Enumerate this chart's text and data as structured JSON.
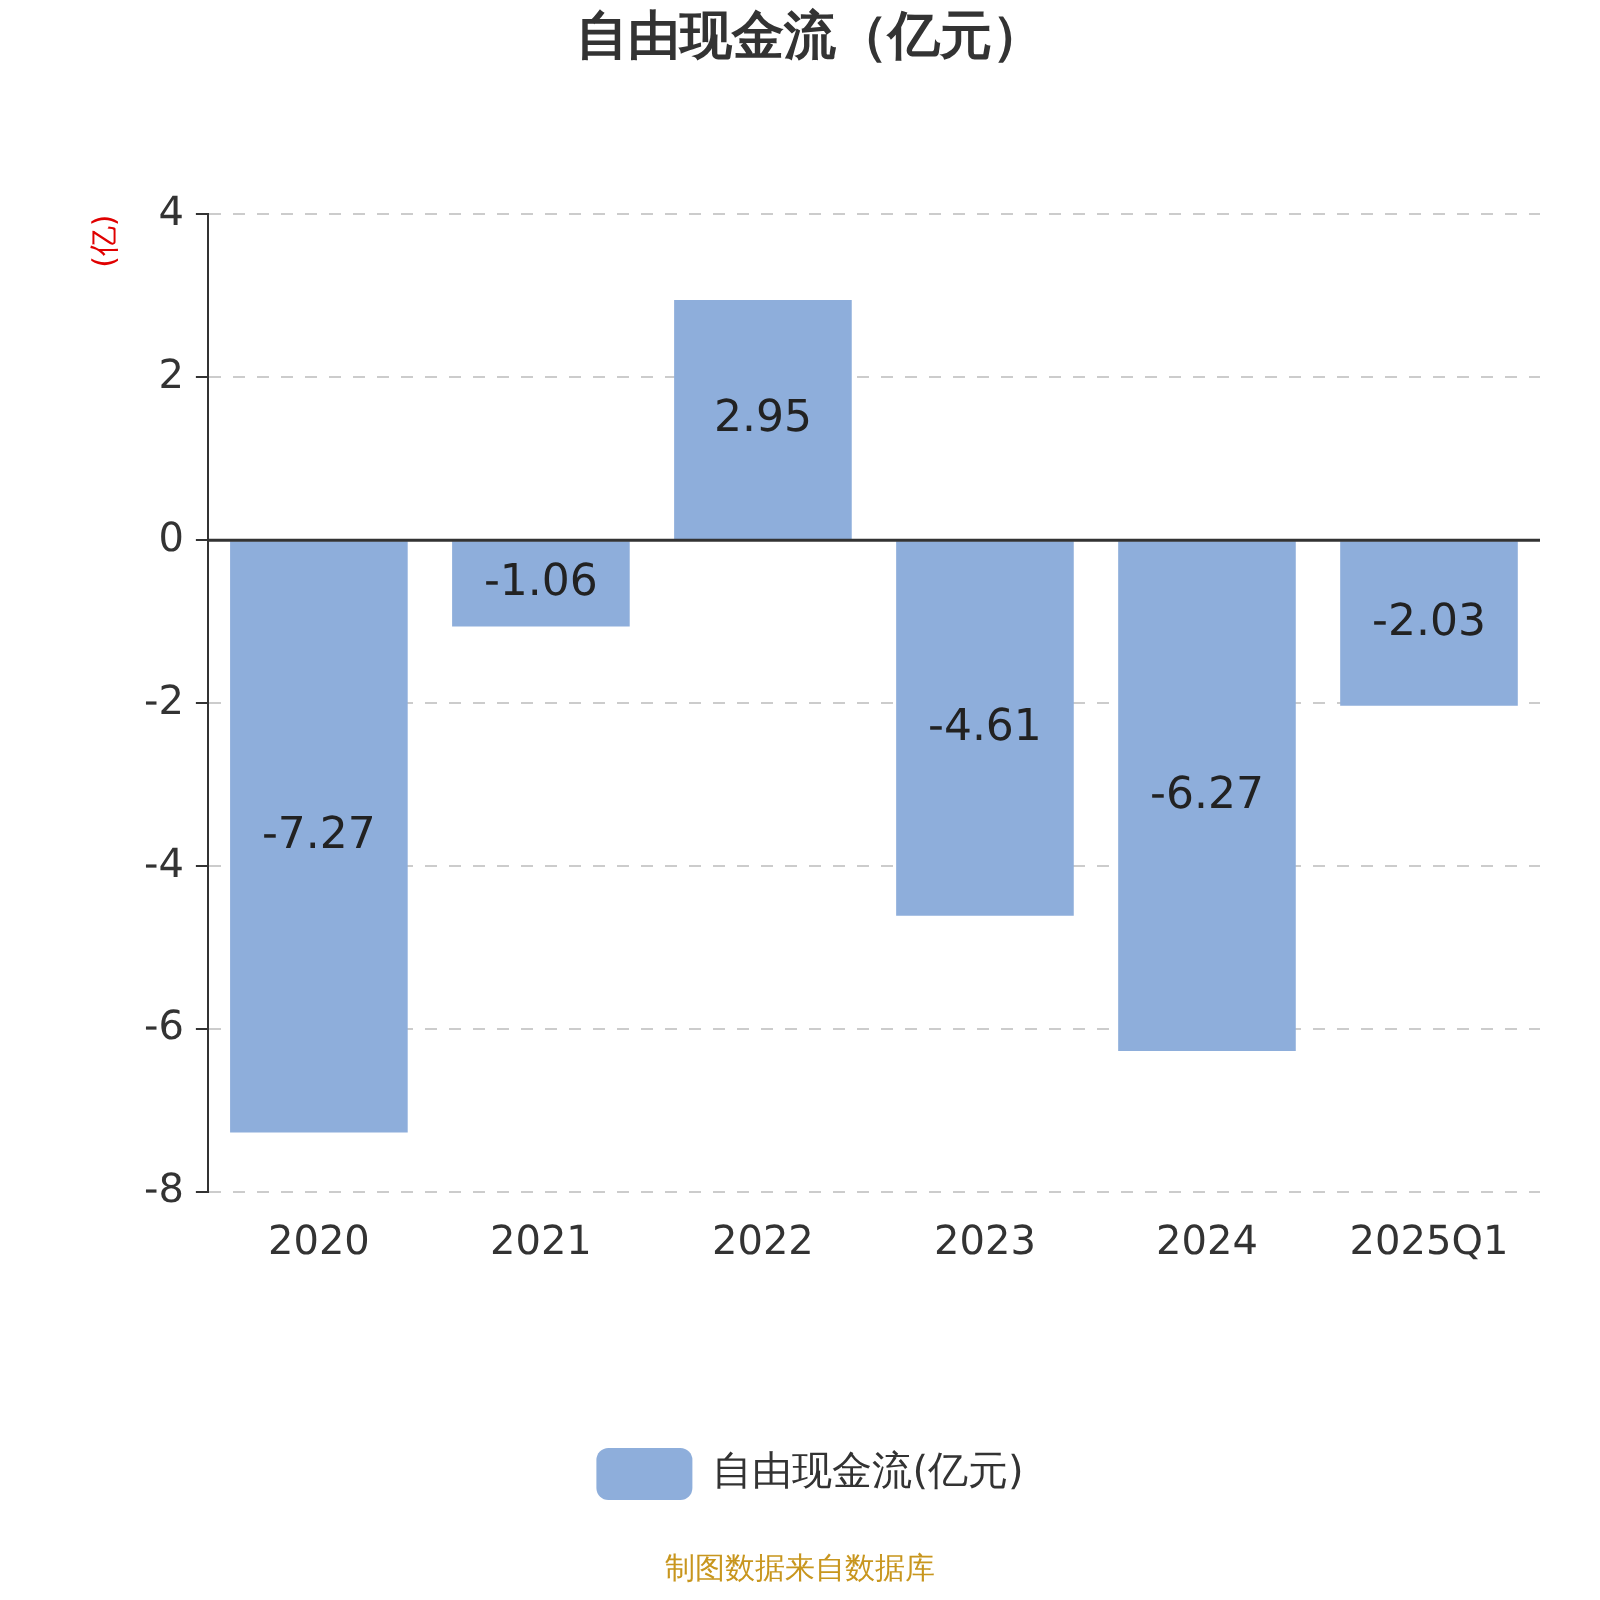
{
  "chart_data": {
    "type": "bar",
    "title": "自由现金流（亿元）",
    "ylabel": "(亿)",
    "categories": [
      "2020",
      "2021",
      "2022",
      "2023",
      "2024",
      "2025Q1"
    ],
    "series": [
      {
        "name": "自由现金流(亿元)",
        "color": "#8eaedb",
        "values": [
          -7.27,
          -1.06,
          2.95,
          -4.61,
          -6.27,
          -2.03
        ]
      }
    ],
    "ylim": [
      -8,
      4
    ],
    "yticks": [
      -8,
      -6,
      -4,
      -2,
      0,
      2,
      4
    ],
    "grid": "y",
    "legend": "bottom",
    "data_labels": true,
    "ref_lines": [
      {
        "axis": "y",
        "value": 0,
        "color": "#333333"
      }
    ],
    "annotations": [
      "制图数据来自数据库"
    ]
  }
}
